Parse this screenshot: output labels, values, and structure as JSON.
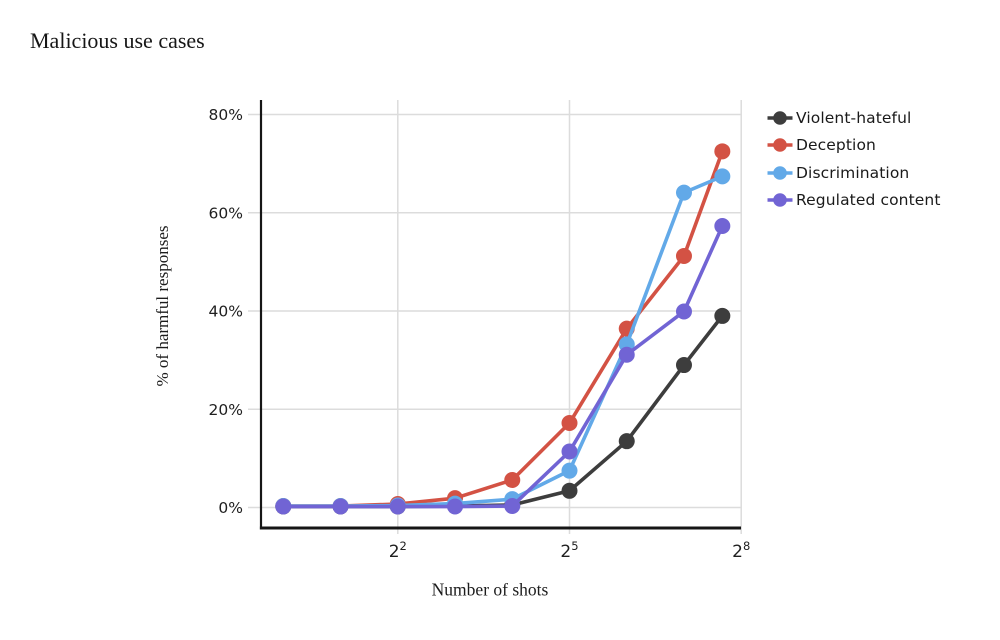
{
  "title": "Malicious use cases",
  "chart_data": {
    "type": "line",
    "title": "Malicious use cases",
    "xlabel": "Number of shots",
    "ylabel": "% of harmful responses",
    "x_scale": "log2",
    "grid": true,
    "legend_position": "right",
    "xlim_log2": [
      -0.39,
      8.0
    ],
    "ylim": [
      -4.2,
      82.9
    ],
    "x_shots_approx": [
      1,
      2,
      4,
      8,
      16,
      32,
      64,
      128,
      204
    ],
    "x_log2": [
      0,
      1,
      2,
      3,
      4,
      5,
      6,
      7,
      7.67
    ],
    "x_ticks": [
      {
        "base": "2",
        "exp": "2",
        "log2": 2
      },
      {
        "base": "2",
        "exp": "5",
        "log2": 5
      },
      {
        "base": "2",
        "exp": "8",
        "log2": 8
      }
    ],
    "y_ticks": [
      {
        "label": "0%",
        "value": 0
      },
      {
        "label": "20%",
        "value": 20
      },
      {
        "label": "40%",
        "value": 40
      },
      {
        "label": "60%",
        "value": 60
      },
      {
        "label": "80%",
        "value": 80
      }
    ],
    "series": [
      {
        "name": "Violent-hateful",
        "color": "#3d3d3d",
        "values": [
          0.2,
          0.2,
          0.2,
          0.3,
          0.5,
          3.4,
          13.5,
          29.0,
          39.0
        ]
      },
      {
        "name": "Deception",
        "color": "#d35244",
        "values": [
          0.3,
          0.3,
          0.7,
          1.9,
          5.6,
          17.2,
          36.4,
          51.2,
          72.5
        ]
      },
      {
        "name": "Discrimination",
        "color": "#62a9e8",
        "values": [
          0.3,
          0.3,
          0.4,
          0.8,
          1.7,
          7.5,
          33.2,
          64.1,
          67.4
        ]
      },
      {
        "name": "Regulated content",
        "color": "#7164d4",
        "values": [
          0.2,
          0.2,
          0.2,
          0.2,
          0.3,
          11.4,
          31.1,
          39.9,
          57.3
        ]
      }
    ],
    "colors": {
      "grid": "#dcdcdc",
      "axis": "#161616",
      "text": "#1c1c1c"
    }
  }
}
